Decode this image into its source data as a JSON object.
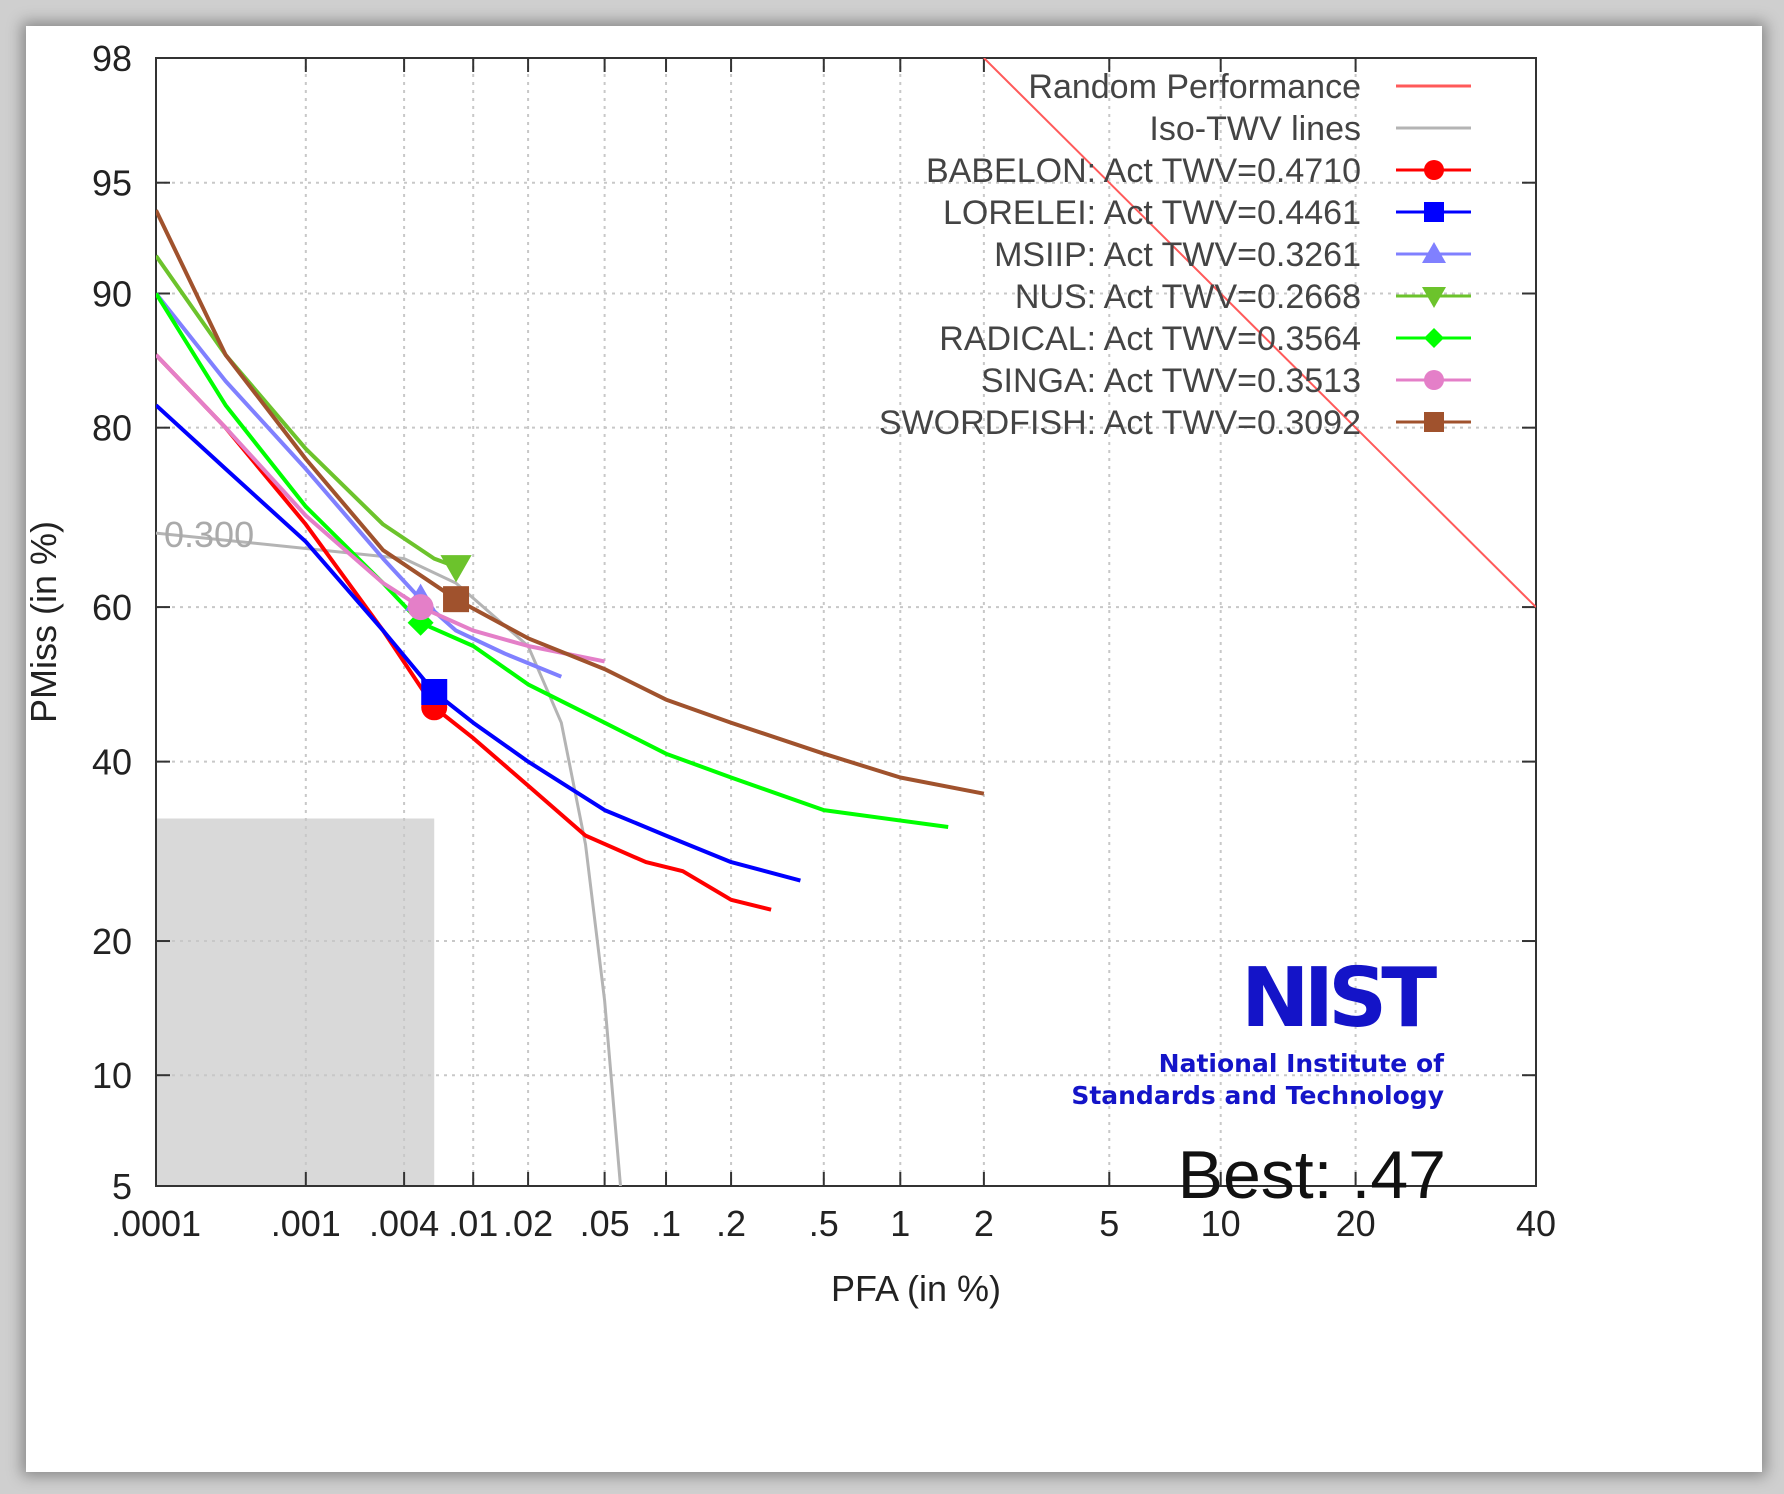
{
  "chart_data": {
    "type": "line",
    "title": "",
    "xlabel": "PFA (in %)",
    "ylabel": "PMiss (in %)",
    "x_scale": "normal-deviate",
    "y_scale": "normal-deviate",
    "xlim": [
      0.0001,
      40
    ],
    "ylim": [
      5,
      98
    ],
    "x_ticks": [
      {
        "v": 0.0001,
        "label": ".0001"
      },
      {
        "v": 0.001,
        "label": ".001"
      },
      {
        "v": 0.004,
        "label": ".004"
      },
      {
        "v": 0.01,
        "label": ".01"
      },
      {
        "v": 0.02,
        "label": ".02"
      },
      {
        "v": 0.05,
        "label": ".05"
      },
      {
        "v": 0.1,
        "label": ".1"
      },
      {
        "v": 0.2,
        "label": ".2"
      },
      {
        "v": 0.5,
        "label": ".5"
      },
      {
        "v": 1,
        "label": "1"
      },
      {
        "v": 2,
        "label": "2"
      },
      {
        "v": 5,
        "label": "5"
      },
      {
        "v": 10,
        "label": "10"
      },
      {
        "v": 20,
        "label": "20"
      },
      {
        "v": 40,
        "label": "40"
      }
    ],
    "y_ticks": [
      {
        "v": 5,
        "label": "5"
      },
      {
        "v": 10,
        "label": "10"
      },
      {
        "v": 20,
        "label": "20"
      },
      {
        "v": 40,
        "label": "40"
      },
      {
        "v": 60,
        "label": "60"
      },
      {
        "v": 80,
        "label": "80"
      },
      {
        "v": 90,
        "label": "90"
      },
      {
        "v": 95,
        "label": "95"
      },
      {
        "v": 98,
        "label": "98"
      }
    ],
    "grid": true,
    "legend_position": "top-right",
    "shaded_region": {
      "x": [
        0.0001,
        0.006
      ],
      "y": [
        5,
        33
      ]
    },
    "reference_lines": [
      {
        "name": "Random Performance",
        "color": "#ff5a5a",
        "x": [
          2,
          40
        ],
        "y": [
          98,
          60
        ]
      },
      {
        "name": "Iso-TWV lines",
        "color": "#b4b4b4",
        "label": "0.300",
        "x": [
          0.0001,
          0.004,
          0.008,
          0.02,
          0.03,
          0.04,
          0.05,
          0.06
        ],
        "y": [
          69,
          66,
          63,
          55,
          45,
          30,
          15,
          5
        ]
      }
    ],
    "series": [
      {
        "name": "BABELON: Act  TWV=0.4710",
        "color": "#ff0000",
        "marker": "circle",
        "x": [
          0.0001,
          0.0003,
          0.001,
          0.003,
          0.006,
          0.01,
          0.02,
          0.04,
          0.08,
          0.12,
          0.2,
          0.3
        ],
        "y": [
          86,
          80,
          70,
          57,
          47,
          43,
          37,
          31,
          28,
          27,
          24,
          23
        ],
        "act": {
          "x": 0.006,
          "y": 47
        }
      },
      {
        "name": "LORELEI: Act  TWV=0.4461",
        "color": "#0000ff",
        "marker": "square",
        "x": [
          0.0001,
          0.0003,
          0.001,
          0.003,
          0.006,
          0.01,
          0.02,
          0.05,
          0.1,
          0.2,
          0.4
        ],
        "y": [
          82,
          76,
          68,
          57,
          49,
          45,
          40,
          34,
          31,
          28,
          26
        ],
        "act": {
          "x": 0.006,
          "y": 49
        }
      },
      {
        "name": "MSIIP: Act  TWV=0.3261",
        "color": "#8080ff",
        "marker": "triangle-up",
        "x": [
          0.0001,
          0.0003,
          0.001,
          0.003,
          0.005,
          0.008,
          0.015,
          0.03
        ],
        "y": [
          90,
          84,
          76,
          66,
          61,
          57,
          54,
          51
        ],
        "act": {
          "x": 0.005,
          "y": 61
        }
      },
      {
        "name": "NUS: Act  TWV=0.2668",
        "color": "#6cc32c",
        "marker": "triangle-down",
        "x": [
          0.0001,
          0.0003,
          0.001,
          0.003,
          0.006,
          0.008
        ],
        "y": [
          92,
          86,
          78,
          70,
          66,
          65
        ],
        "act": {
          "x": 0.008,
          "y": 65
        }
      },
      {
        "name": "RADICAL: Act  TWV=0.3564",
        "color": "#00ff00",
        "marker": "diamond",
        "x": [
          0.0001,
          0.0003,
          0.001,
          0.003,
          0.005,
          0.01,
          0.02,
          0.05,
          0.1,
          0.2,
          0.5,
          1.5
        ],
        "y": [
          90,
          82,
          72,
          63,
          58,
          55,
          50,
          45,
          41,
          38,
          34,
          32
        ],
        "act": {
          "x": 0.005,
          "y": 58
        }
      },
      {
        "name": "SINGA: Act  TWV=0.3513",
        "color": "#e47fc8",
        "marker": "circle",
        "x": [
          0.0001,
          0.0003,
          0.001,
          0.003,
          0.005,
          0.01,
          0.02,
          0.05
        ],
        "y": [
          86,
          80,
          71,
          63,
          60,
          57,
          55,
          53
        ],
        "act": {
          "x": 0.005,
          "y": 60
        }
      },
      {
        "name": "SWORDFISH: Act  TWV=0.3092",
        "color": "#a0522d",
        "marker": "square",
        "x": [
          0.0001,
          0.0003,
          0.001,
          0.003,
          0.008,
          0.02,
          0.05,
          0.1,
          0.2,
          0.5,
          1,
          2
        ],
        "y": [
          94,
          86,
          77,
          67,
          61,
          56,
          52,
          48,
          45,
          41,
          38,
          36
        ],
        "act": {
          "x": 0.008,
          "y": 61
        }
      }
    ]
  },
  "logo": {
    "mark": "NIST",
    "line1": "National Institute of",
    "line2": "Standards and Technology"
  },
  "annotation": "Best: .47"
}
